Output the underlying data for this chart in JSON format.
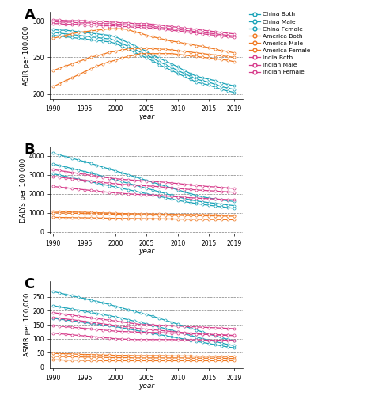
{
  "years": [
    1990,
    1991,
    1992,
    1993,
    1994,
    1995,
    1996,
    1997,
    1998,
    1999,
    2000,
    2001,
    2002,
    2003,
    2004,
    2005,
    2006,
    2007,
    2008,
    2009,
    2010,
    2011,
    2012,
    2013,
    2014,
    2015,
    2016,
    2017,
    2018,
    2019
  ],
  "ASIR": {
    "China_Male": [
      288,
      287,
      287,
      286,
      285,
      284,
      283,
      282,
      281,
      280,
      278,
      274,
      270,
      266,
      262,
      258,
      253,
      249,
      245,
      241,
      237,
      232,
      228,
      224,
      222,
      220,
      218,
      215,
      213,
      211
    ],
    "China_Both": [
      284,
      283,
      282,
      281,
      280,
      279,
      278,
      277,
      276,
      275,
      273,
      269,
      265,
      261,
      257,
      253,
      249,
      244,
      240,
      236,
      232,
      228,
      224,
      220,
      218,
      216,
      213,
      210,
      208,
      206
    ],
    "China_Female": [
      280,
      279,
      278,
      277,
      276,
      275,
      274,
      273,
      272,
      271,
      269,
      265,
      261,
      257,
      253,
      249,
      245,
      240,
      236,
      232,
      228,
      224,
      220,
      216,
      214,
      212,
      209,
      206,
      204,
      202
    ],
    "America_Male": [
      276,
      278,
      280,
      282,
      284,
      285,
      286,
      287,
      288,
      289,
      289,
      289,
      288,
      285,
      283,
      280,
      278,
      276,
      274,
      272,
      271,
      269,
      268,
      266,
      265,
      263,
      261,
      259,
      258,
      256
    ],
    "America_Both": [
      232,
      235,
      238,
      241,
      244,
      247,
      250,
      252,
      254,
      257,
      258,
      260,
      261,
      262,
      262,
      262,
      262,
      261,
      261,
      260,
      259,
      258,
      257,
      256,
      255,
      254,
      253,
      252,
      251,
      250
    ],
    "America_Female": [
      210,
      214,
      218,
      222,
      226,
      230,
      234,
      238,
      241,
      244,
      246,
      249,
      251,
      253,
      255,
      255,
      255,
      255,
      255,
      255,
      254,
      253,
      252,
      251,
      250,
      249,
      248,
      247,
      246,
      244
    ],
    "India_Male": [
      301,
      301,
      300,
      300,
      300,
      300,
      299,
      299,
      299,
      298,
      298,
      297,
      297,
      296,
      296,
      296,
      295,
      294,
      293,
      292,
      291,
      290,
      289,
      288,
      287,
      286,
      285,
      284,
      283,
      282
    ],
    "India_Both": [
      299,
      298,
      298,
      298,
      297,
      297,
      297,
      296,
      296,
      296,
      295,
      295,
      294,
      294,
      293,
      293,
      292,
      291,
      290,
      289,
      288,
      287,
      286,
      285,
      284,
      283,
      282,
      281,
      280,
      279
    ],
    "India_Female": [
      296,
      296,
      295,
      295,
      295,
      294,
      294,
      294,
      293,
      293,
      293,
      292,
      292,
      291,
      291,
      290,
      290,
      289,
      288,
      287,
      286,
      285,
      284,
      283,
      282,
      281,
      280,
      279,
      278,
      277
    ]
  },
  "DALYs": {
    "China_Male": [
      4150,
      4060,
      3970,
      3880,
      3790,
      3700,
      3610,
      3510,
      3410,
      3310,
      3210,
      3110,
      3010,
      2910,
      2810,
      2710,
      2610,
      2510,
      2410,
      2310,
      2210,
      2110,
      2010,
      1920,
      1840,
      1780,
      1730,
      1680,
      1640,
      1600
    ],
    "China_Both": [
      3580,
      3500,
      3420,
      3340,
      3260,
      3180,
      3100,
      3010,
      2920,
      2830,
      2740,
      2650,
      2560,
      2470,
      2380,
      2290,
      2200,
      2110,
      2020,
      1930,
      1840,
      1760,
      1690,
      1630,
      1580,
      1540,
      1500,
      1460,
      1420,
      1380
    ],
    "China_Female": [
      3060,
      2990,
      2920,
      2850,
      2780,
      2710,
      2640,
      2570,
      2500,
      2430,
      2360,
      2290,
      2220,
      2150,
      2080,
      2010,
      1940,
      1870,
      1800,
      1730,
      1660,
      1600,
      1540,
      1490,
      1440,
      1400,
      1360,
      1320,
      1280,
      1240
    ],
    "India_Male": [
      3280,
      3230,
      3180,
      3130,
      3080,
      3030,
      2980,
      2930,
      2880,
      2840,
      2800,
      2770,
      2740,
      2720,
      2700,
      2680,
      2660,
      2635,
      2605,
      2575,
      2545,
      2510,
      2475,
      2440,
      2410,
      2385,
      2360,
      2335,
      2310,
      2285
    ],
    "India_Both": [
      2920,
      2880,
      2840,
      2800,
      2760,
      2720,
      2680,
      2640,
      2600,
      2565,
      2530,
      2505,
      2480,
      2460,
      2440,
      2420,
      2400,
      2375,
      2345,
      2315,
      2285,
      2255,
      2230,
      2205,
      2185,
      2165,
      2145,
      2125,
      2105,
      2085
    ],
    "India_Female": [
      2390,
      2355,
      2320,
      2285,
      2250,
      2215,
      2180,
      2145,
      2110,
      2080,
      2050,
      2025,
      2000,
      1980,
      1965,
      1950,
      1935,
      1915,
      1890,
      1865,
      1840,
      1815,
      1795,
      1775,
      1760,
      1745,
      1730,
      1715,
      1700,
      1685
    ],
    "America_Male": [
      1075,
      1065,
      1055,
      1045,
      1035,
      1025,
      1015,
      1005,
      995,
      985,
      975,
      965,
      955,
      950,
      945,
      940,
      935,
      930,
      925,
      920,
      915,
      910,
      905,
      900,
      895,
      890,
      885,
      880,
      875,
      870
    ],
    "America_Both": [
      1000,
      992,
      984,
      976,
      968,
      960,
      952,
      944,
      936,
      928,
      920,
      914,
      908,
      902,
      896,
      890,
      885,
      880,
      875,
      870,
      865,
      860,
      855,
      850,
      845,
      840,
      835,
      830,
      825,
      820
    ],
    "America_Female": [
      760,
      755,
      750,
      745,
      740,
      735,
      730,
      725,
      720,
      715,
      710,
      706,
      702,
      698,
      694,
      690,
      686,
      682,
      678,
      674,
      670,
      666,
      662,
      658,
      654,
      650,
      646,
      642,
      638,
      634
    ]
  },
  "ASMR": {
    "China_Male": [
      268,
      263,
      258,
      253,
      248,
      243,
      238,
      233,
      228,
      222,
      216,
      210,
      204,
      198,
      192,
      186,
      180,
      173,
      166,
      159,
      152,
      145,
      138,
      131,
      124,
      117,
      110,
      104,
      98,
      93
    ],
    "China_Both": [
      218,
      214,
      210,
      206,
      202,
      198,
      194,
      190,
      186,
      182,
      178,
      173,
      168,
      163,
      158,
      153,
      148,
      142,
      136,
      130,
      124,
      118,
      112,
      106,
      100,
      95,
      90,
      85,
      80,
      76
    ],
    "China_Female": [
      173,
      170,
      167,
      164,
      161,
      158,
      155,
      152,
      149,
      146,
      143,
      139,
      135,
      131,
      127,
      123,
      119,
      115,
      111,
      107,
      103,
      99,
      95,
      91,
      87,
      83,
      79,
      75,
      71,
      68
    ],
    "India_Male": [
      193,
      190,
      187,
      184,
      181,
      178,
      175,
      172,
      169,
      166,
      163,
      160,
      157,
      154,
      151,
      150,
      149,
      148,
      147,
      146,
      145,
      144,
      143,
      142,
      141,
      140,
      139,
      138,
      137,
      136
    ],
    "India_Both": [
      148,
      145,
      143,
      141,
      139,
      137,
      135,
      133,
      131,
      129,
      127,
      126,
      125,
      124,
      123,
      123,
      122,
      122,
      121,
      120,
      120,
      119,
      118,
      117,
      116,
      116,
      115,
      114,
      113,
      112
    ],
    "India_Female": [
      120,
      118,
      116,
      114,
      112,
      110,
      108,
      106,
      104,
      102,
      100,
      99,
      98,
      97,
      97,
      97,
      97,
      97,
      97,
      97,
      96,
      96,
      96,
      96,
      96,
      95,
      95,
      95,
      95,
      94
    ],
    "India_Extra": [
      176,
      173,
      170,
      168,
      165,
      162,
      159,
      156,
      153,
      150,
      147,
      144,
      141,
      138,
      136,
      134,
      132,
      130,
      128,
      126,
      124,
      122,
      120,
      118,
      116,
      115,
      114,
      113,
      112,
      111
    ],
    "America_Male": [
      48,
      47,
      47,
      46,
      45,
      44,
      44,
      43,
      42,
      42,
      41,
      41,
      41,
      40,
      40,
      40,
      40,
      40,
      40,
      39,
      39,
      39,
      39,
      38,
      38,
      38,
      37,
      37,
      37,
      36
    ],
    "America_Both": [
      38,
      37,
      37,
      36,
      36,
      35,
      35,
      34,
      34,
      33,
      33,
      33,
      33,
      32,
      32,
      32,
      32,
      32,
      32,
      32,
      32,
      32,
      31,
      31,
      31,
      31,
      31,
      31,
      30,
      30
    ],
    "America_Female": [
      25,
      25,
      24,
      24,
      24,
      23,
      23,
      23,
      22,
      22,
      22,
      22,
      22,
      22,
      22,
      22,
      22,
      22,
      22,
      22,
      22,
      22,
      22,
      22,
      22,
      22,
      22,
      22,
      22,
      22
    ]
  },
  "colors": {
    "china": "#1aa3b8",
    "america": "#f07820",
    "india": "#d63a8a"
  },
  "legend_labels": [
    "China Both",
    "China Male",
    "China Female",
    "America Both",
    "America Male",
    "America Female",
    "India Both",
    "Indian Male",
    "Indian Female"
  ],
  "panel_labels": [
    "A",
    "B",
    "C"
  ],
  "ylabels": [
    "ASIR per 100,000",
    "DALYs per 100,000",
    "ASMR per 100,000"
  ],
  "xlabel": "year",
  "ASIR_ylim": [
    193,
    312
  ],
  "ASIR_yticks": [
    200,
    250,
    300
  ],
  "ASIR_grid": [
    200,
    250,
    300
  ],
  "DALYs_ylim": [
    -100,
    4500
  ],
  "DALYs_yticks": [
    0,
    1000,
    2000,
    3000,
    4000
  ],
  "DALYs_grid": [
    0,
    1000,
    2000,
    3000,
    4000
  ],
  "ASMR_ylim": [
    -5,
    305
  ],
  "ASMR_yticks": [
    0,
    50,
    100,
    150,
    200,
    250
  ],
  "ASMR_grid": [
    50,
    100,
    150,
    200,
    250
  ]
}
